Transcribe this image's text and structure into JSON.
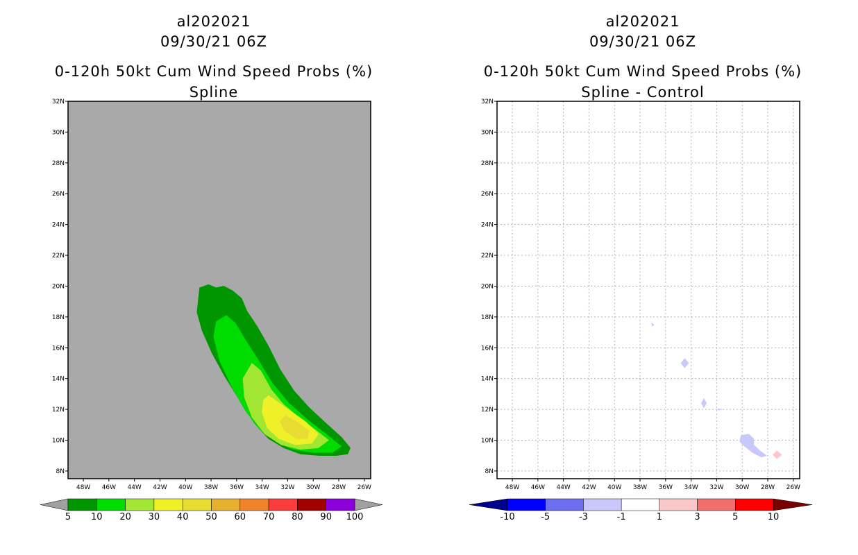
{
  "chart_data": [
    {
      "type": "heatmap",
      "storm_id": "al202021",
      "datetime": "09/30/21 06Z",
      "title": "0-120h 50kt Cum Wind Speed Probs (%)",
      "subtitle": "Spline",
      "xlabel": "",
      "ylabel": "",
      "x_tick_labels": [
        "48W",
        "46W",
        "44W",
        "42W",
        "40W",
        "38W",
        "36W",
        "34W",
        "32W",
        "30W",
        "28W",
        "26W"
      ],
      "y_tick_labels": [
        "8N",
        "10N",
        "12N",
        "14N",
        "16N",
        "18N",
        "20N",
        "22N",
        "24N",
        "26N",
        "28N",
        "30N",
        "32N"
      ],
      "x_range_deg_lon": [
        -49.2,
        -25.5
      ],
      "y_range_deg_lat": [
        7.5,
        32
      ],
      "grid": false,
      "background_color": "#a9a9a9",
      "colorbar": {
        "levels": [
          "5",
          "10",
          "20",
          "30",
          "40",
          "50",
          "60",
          "70",
          "80",
          "90",
          "100"
        ],
        "colors": [
          "#009600",
          "#00dc00",
          "#a0e632",
          "#f0f028",
          "#e6dc32",
          "#e6af2d",
          "#f08228",
          "#fa3c3c",
          "#a00000",
          "#8c00dc"
        ],
        "extend_color": "#a0a0a0"
      },
      "contour_regions": [
        {
          "level": 5,
          "color": "#009600",
          "points": [
            [
              -38.9,
              19.9
            ],
            [
              -38.2,
              20.1
            ],
            [
              -37.6,
              19.9
            ],
            [
              -37,
              20
            ],
            [
              -36.3,
              19.7
            ],
            [
              -35.6,
              19.2
            ],
            [
              -35.2,
              18.4
            ],
            [
              -34.4,
              17.4
            ],
            [
              -33.5,
              16.1
            ],
            [
              -32.6,
              14.6
            ],
            [
              -31.5,
              13.2
            ],
            [
              -30.3,
              12.1
            ],
            [
              -29,
              11.1
            ],
            [
              -27.8,
              10.2
            ],
            [
              -27.1,
              9.5
            ],
            [
              -27.3,
              9.1
            ],
            [
              -28.2,
              9
            ],
            [
              -29.5,
              9
            ],
            [
              -31,
              9.1
            ],
            [
              -32.3,
              9.5
            ],
            [
              -33.5,
              10.1
            ],
            [
              -34.6,
              11.1
            ],
            [
              -35.7,
              12.5
            ],
            [
              -36.9,
              14.1
            ],
            [
              -37.9,
              15.6
            ],
            [
              -38.7,
              17.1
            ],
            [
              -39.1,
              18.3
            ]
          ]
        },
        {
          "level": 10,
          "color": "#00dc00",
          "points": [
            [
              -36.8,
              18.1
            ],
            [
              -36.1,
              17.6
            ],
            [
              -35.3,
              16.5
            ],
            [
              -34.3,
              15.2
            ],
            [
              -33.2,
              13.7
            ],
            [
              -31.9,
              12.4
            ],
            [
              -30.4,
              11.3
            ],
            [
              -29,
              10.4
            ],
            [
              -27.8,
              9.6
            ],
            [
              -28.5,
              9.2
            ],
            [
              -30,
              9.2
            ],
            [
              -31.6,
              9.4
            ],
            [
              -32.9,
              9.9
            ],
            [
              -34.2,
              10.7
            ],
            [
              -35.3,
              11.9
            ],
            [
              -36.4,
              13.5
            ],
            [
              -37.3,
              15.1
            ],
            [
              -37.8,
              16.7
            ],
            [
              -37.6,
              17.7
            ]
          ]
        },
        {
          "level": 20,
          "color": "#a0e632",
          "points": [
            [
              -34.8,
              15
            ],
            [
              -34.1,
              14.5
            ],
            [
              -33.3,
              13.3
            ],
            [
              -32.3,
              12.3
            ],
            [
              -31,
              11.4
            ],
            [
              -29.7,
              10.6
            ],
            [
              -28.8,
              10
            ],
            [
              -29.6,
              9.5
            ],
            [
              -31,
              9.4
            ],
            [
              -32.5,
              9.7
            ],
            [
              -33.8,
              10.4
            ],
            [
              -34.8,
              11.5
            ],
            [
              -35.4,
              12.8
            ],
            [
              -35.5,
              14
            ]
          ]
        },
        {
          "level": 30,
          "color": "#f0f028",
          "points": [
            [
              -33.5,
              12.9
            ],
            [
              -32.8,
              12.5
            ],
            [
              -31.8,
              11.9
            ],
            [
              -30.6,
              11.2
            ],
            [
              -29.6,
              10.4
            ],
            [
              -30.1,
              9.8
            ],
            [
              -31.4,
              9.7
            ],
            [
              -32.7,
              10.1
            ],
            [
              -33.6,
              10.8
            ],
            [
              -34,
              11.8
            ],
            [
              -33.9,
              12.6
            ]
          ]
        },
        {
          "level": 40,
          "color": "#e6dc32",
          "points": [
            [
              -32.2,
              11.6
            ],
            [
              -31.3,
              11.2
            ],
            [
              -30.3,
              10.6
            ],
            [
              -30.5,
              10.1
            ],
            [
              -31.3,
              10.1
            ],
            [
              -32.2,
              10.6
            ],
            [
              -32.6,
              11.2
            ]
          ]
        }
      ]
    },
    {
      "type": "heatmap",
      "storm_id": "al202021",
      "datetime": "09/30/21 06Z",
      "title": "0-120h 50kt Cum Wind Speed Probs (%)",
      "subtitle": "Spline - Control",
      "xlabel": "",
      "ylabel": "",
      "x_tick_labels": [
        "48W",
        "46W",
        "44W",
        "42W",
        "40W",
        "38W",
        "36W",
        "34W",
        "32W",
        "30W",
        "28W",
        "26W"
      ],
      "y_tick_labels": [
        "8N",
        "10N",
        "12N",
        "14N",
        "16N",
        "18N",
        "20N",
        "22N",
        "24N",
        "26N",
        "28N",
        "30N",
        "32N"
      ],
      "x_range_deg_lon": [
        -49.2,
        -25.5
      ],
      "y_range_deg_lat": [
        7.5,
        32
      ],
      "grid": true,
      "background_color": "#ffffff",
      "colorbar": {
        "levels": [
          "-10",
          "-5",
          "-3",
          "-1",
          "1",
          "3",
          "5",
          "10"
        ],
        "colors": [
          "#0000dc",
          "#0000ff",
          "#6e6ef0",
          "#c8c8fa",
          "#ffffff",
          "#fac8c8",
          "#f06e6e",
          "#ff0000",
          "#dc0000",
          "#780000"
        ],
        "low_extend_color": "#00008c",
        "high_extend_color": "#780000"
      },
      "contour_regions": [
        {
          "level": -1,
          "color": "#c8c8fa",
          "points": [
            [
              -37.1,
              17.6
            ],
            [
              -36.9,
              17.5
            ],
            [
              -37.05,
              17.4
            ]
          ]
        },
        {
          "level": -1,
          "color": "#c8c8fa",
          "points": [
            [
              -34.5,
              15.3
            ],
            [
              -34.2,
              15
            ],
            [
              -34.5,
              14.7
            ],
            [
              -34.8,
              15
            ]
          ]
        },
        {
          "level": -1,
          "color": "#c8c8fa",
          "points": [
            [
              -33,
              12.7
            ],
            [
              -32.8,
              12.4
            ],
            [
              -33,
              12.1
            ],
            [
              -33.2,
              12.4
            ]
          ]
        },
        {
          "level": -1,
          "color": "#c8c8fa",
          "points": [
            [
              -31.9,
              12.05
            ],
            [
              -31.6,
              12
            ],
            [
              -31.9,
              11.95
            ]
          ]
        },
        {
          "level": -1,
          "color": "#c8c8fa",
          "points": [
            [
              -30.1,
              10.3
            ],
            [
              -29.5,
              10.4
            ],
            [
              -29.1,
              10.1
            ],
            [
              -29.1,
              9.7
            ],
            [
              -28.6,
              9.3
            ],
            [
              -28.1,
              9
            ],
            [
              -28.5,
              8.9
            ],
            [
              -29.2,
              9.2
            ],
            [
              -29.8,
              9.6
            ],
            [
              -30.2,
              9.9
            ]
          ]
        },
        {
          "level": 1,
          "color": "#fac8c8",
          "points": [
            [
              -27.3,
              9.3
            ],
            [
              -26.9,
              9.05
            ],
            [
              -27.3,
              8.8
            ],
            [
              -27.6,
              9.05
            ]
          ]
        }
      ]
    }
  ]
}
